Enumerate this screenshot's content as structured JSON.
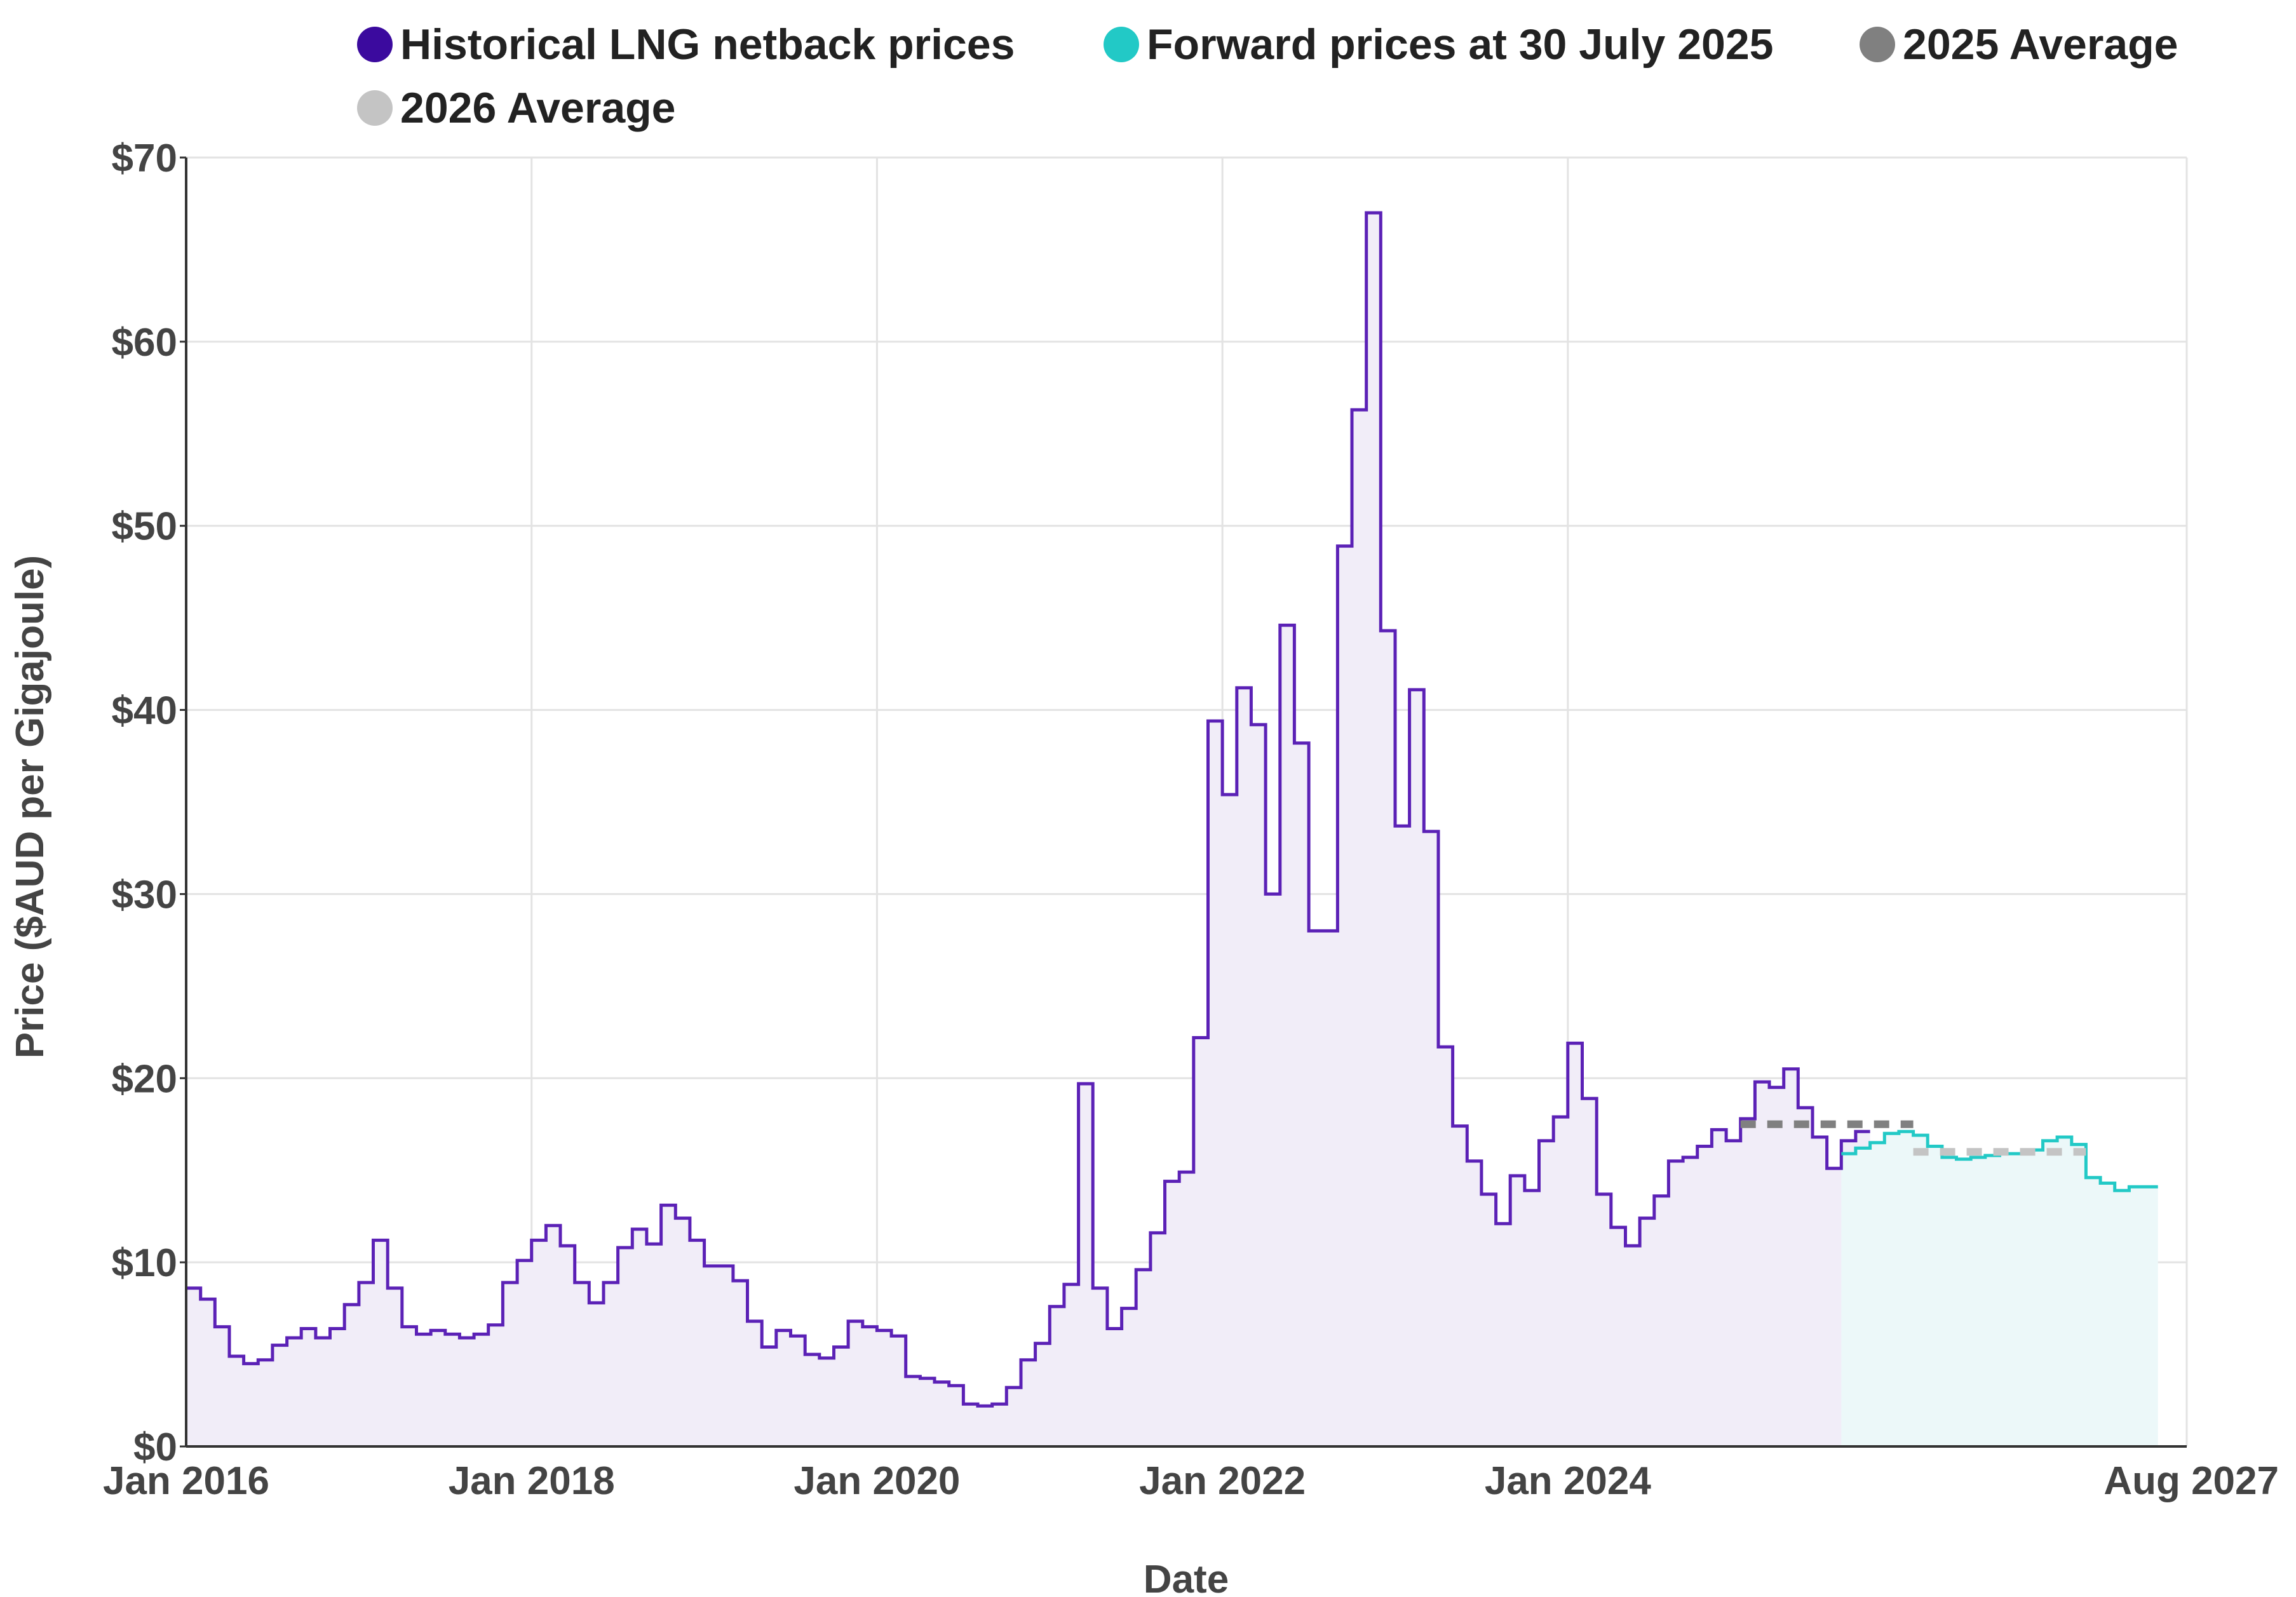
{
  "chart_data": {
    "type": "line",
    "title": "",
    "xlabel": "Date",
    "ylabel": "Price ($AUD per Gigajoule)",
    "ylim": [
      0,
      70
    ],
    "xlim": [
      "2016-01",
      "2027-08"
    ],
    "y_ticks": [
      0,
      10,
      20,
      30,
      40,
      50,
      60,
      70
    ],
    "y_tick_labels": [
      "$0",
      "$10",
      "$20",
      "$30",
      "$40",
      "$50",
      "$60",
      "$70"
    ],
    "x_ticks": [
      "2016-01",
      "2018-01",
      "2020-01",
      "2022-01",
      "2024-01",
      "2027-08"
    ],
    "x_tick_labels": [
      "Jan 2016",
      "Jan 2018",
      "Jan 2020",
      "Jan 2022",
      "Jan 2024",
      "Aug 2027"
    ],
    "legend_position": "top",
    "grid": true,
    "colors": {
      "historical": "#5b21b6",
      "historical_legend": "#3b0a9e",
      "historical_fill": "#f1edf8",
      "forward": "#22c9c6",
      "forward_fill": "#ecf8f9",
      "avg2025": "#808080",
      "avg2026": "#c4c4c4",
      "grid": "#e3e3e3",
      "axis": "#333333"
    },
    "legend": [
      {
        "key": "historical",
        "label": "Historical LNG netback prices"
      },
      {
        "key": "forward",
        "label": "Forward prices at 30 July 2025"
      },
      {
        "key": "avg2025",
        "label": "2025 Average"
      },
      {
        "key": "avg2026",
        "label": "2026 Average"
      }
    ],
    "series": [
      {
        "name": "Historical LNG netback prices",
        "key": "historical",
        "style": "step",
        "start": "2016-01",
        "interval": "month",
        "values": [
          8.6,
          8.0,
          6.5,
          4.9,
          4.5,
          4.7,
          5.5,
          5.9,
          6.4,
          5.9,
          6.4,
          7.7,
          8.9,
          11.2,
          8.6,
          6.5,
          6.1,
          6.3,
          6.1,
          5.9,
          6.1,
          6.6,
          8.9,
          10.1,
          11.2,
          12.0,
          10.9,
          8.9,
          7.8,
          8.9,
          10.8,
          11.8,
          11.0,
          13.1,
          12.4,
          11.2,
          9.8,
          9.8,
          9.0,
          6.8,
          5.4,
          6.3,
          6.0,
          5.0,
          4.8,
          5.4,
          6.8,
          6.5,
          6.3,
          6.0,
          3.8,
          3.7,
          3.5,
          3.3,
          2.3,
          2.2,
          2.3,
          3.2,
          4.7,
          5.6,
          7.6,
          8.8,
          19.7,
          8.6,
          6.4,
          7.5,
          9.6,
          11.6,
          14.4,
          14.9,
          22.2,
          39.4,
          35.4,
          41.2,
          39.2,
          30.0,
          44.6,
          38.2,
          28.0,
          28.0,
          48.9,
          56.3,
          67.0,
          44.3,
          33.7,
          41.1,
          33.4,
          21.7,
          17.4,
          15.5,
          13.7,
          12.1,
          14.7,
          13.9,
          16.6,
          17.9,
          21.9,
          18.9,
          13.7,
          11.9,
          10.9,
          12.4,
          13.6,
          15.5,
          15.7,
          16.3,
          17.2,
          16.6,
          17.8,
          19.8,
          19.5,
          20.5,
          18.4,
          16.8,
          15.1,
          16.6,
          17.1
        ]
      },
      {
        "name": "Forward prices at 30 July 2025",
        "key": "forward",
        "style": "step",
        "start": "2025-08",
        "interval": "month",
        "values": [
          15.9,
          16.2,
          16.5,
          17.0,
          17.1,
          16.9,
          16.3,
          15.7,
          15.6,
          15.7,
          15.8,
          15.9,
          15.9,
          16.1,
          16.6,
          16.8,
          16.4,
          14.6,
          14.3,
          13.9,
          14.1,
          14.1
        ]
      },
      {
        "name": "2025 Average",
        "key": "avg2025",
        "style": "dashed",
        "x": [
          "2025-01",
          "2026-01"
        ],
        "value": 17.5
      },
      {
        "name": "2026 Average",
        "key": "avg2026",
        "style": "dashed",
        "x": [
          "2026-01",
          "2027-01"
        ],
        "value": 16.0
      }
    ]
  }
}
